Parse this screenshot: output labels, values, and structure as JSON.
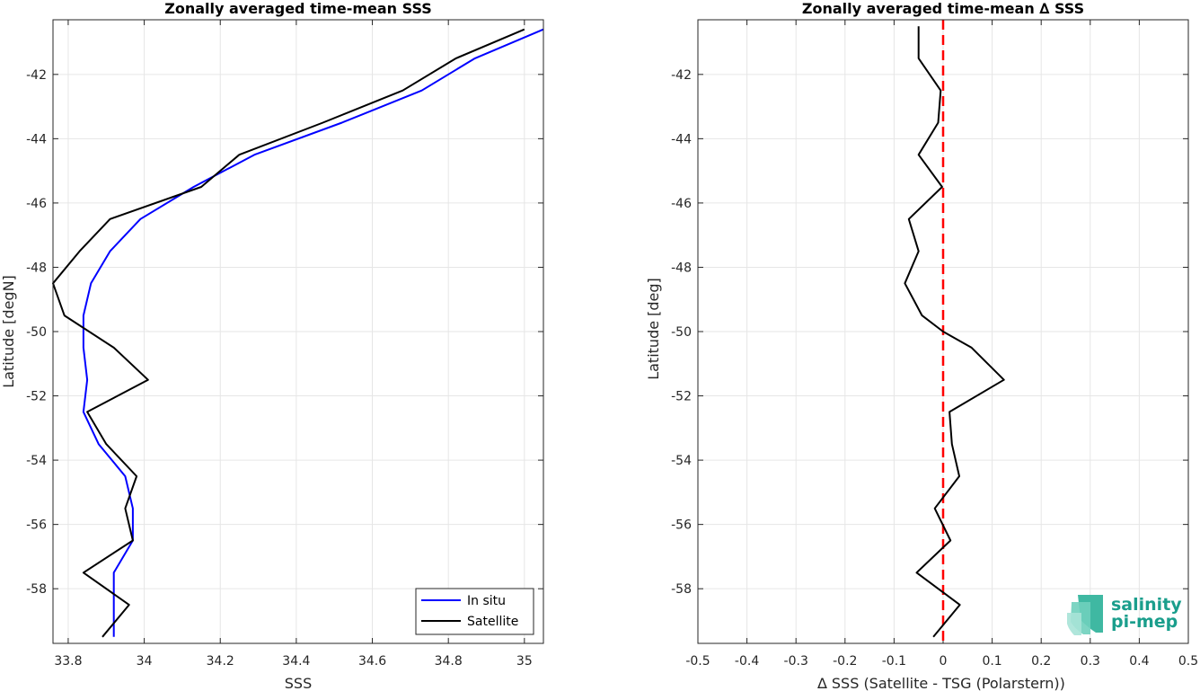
{
  "brand": {
    "line1": "salinity",
    "line2": "pi-mep",
    "color": "#1a9e8c"
  },
  "chart_data": [
    {
      "type": "line",
      "title": "Zonally averaged time-mean SSS",
      "xlabel": "SSS",
      "ylabel": "Latitude [degN]",
      "xlim": [
        33.76,
        35.05
      ],
      "ylim": [
        -59.7,
        -40.3
      ],
      "xticks": [
        33.8,
        34,
        34.2,
        34.4,
        34.6,
        34.8,
        35
      ],
      "xtick_labels": [
        "33.8",
        "34",
        "34.2",
        "34.4",
        "34.6",
        "34.8",
        "35"
      ],
      "yticks": [
        -58,
        -56,
        -54,
        -52,
        -50,
        -48,
        -46,
        -44,
        -42
      ],
      "ytick_labels": [
        "-58",
        "-56",
        "-54",
        "-52",
        "-50",
        "-48",
        "-46",
        "-44",
        "-42"
      ],
      "grid": true,
      "legend_position": "bottom-right",
      "series": [
        {
          "name": "In situ",
          "color": "#0000ff",
          "x": [
            35.05,
            34.87,
            34.73,
            34.52,
            34.29,
            34.13,
            33.99,
            33.91,
            33.86,
            33.84,
            33.84,
            33.85,
            33.84,
            33.88,
            33.95,
            33.97,
            33.97,
            33.92,
            33.92,
            33.92
          ],
          "y": [
            -40.6,
            -41.5,
            -42.5,
            -43.5,
            -44.5,
            -45.5,
            -46.5,
            -47.5,
            -48.5,
            -49.5,
            -50.5,
            -51.5,
            -52.5,
            -53.5,
            -54.5,
            -55.5,
            -56.5,
            -57.5,
            -58.5,
            -59.5
          ]
        },
        {
          "name": "Satellite",
          "color": "#000000",
          "x": [
            35.0,
            34.82,
            34.68,
            34.47,
            34.25,
            34.15,
            33.91,
            33.83,
            33.76,
            33.79,
            33.92,
            34.01,
            33.85,
            33.9,
            33.98,
            33.95,
            33.97,
            33.84,
            33.96,
            33.89
          ],
          "y": [
            -40.6,
            -41.5,
            -42.5,
            -43.5,
            -44.5,
            -45.5,
            -46.5,
            -47.5,
            -48.5,
            -49.5,
            -50.5,
            -51.5,
            -52.5,
            -53.5,
            -54.5,
            -55.5,
            -56.5,
            -57.5,
            -58.5,
            -59.5
          ]
        }
      ]
    },
    {
      "type": "line",
      "title": "Zonally averaged time-mean ∆ SSS",
      "xlabel": "∆ SSS (Satellite - TSG (Polarstern))",
      "ylabel": "Latitude [deg]",
      "xlim": [
        -0.5,
        0.5
      ],
      "ylim": [
        -59.7,
        -40.3
      ],
      "xticks": [
        -0.5,
        -0.4,
        -0.3,
        -0.2,
        -0.1,
        0,
        0.1,
        0.2,
        0.3,
        0.4,
        0.5
      ],
      "xtick_labels": [
        "-0.5",
        "-0.4",
        "-0.3",
        "-0.2",
        "-0.1",
        "0",
        "0.1",
        "0.2",
        "0.3",
        "0.4",
        "0.5"
      ],
      "yticks": [
        -58,
        -56,
        -54,
        -52,
        -50,
        -48,
        -46,
        -44,
        -42
      ],
      "ytick_labels": [
        "-58",
        "-56",
        "-54",
        "-52",
        "-50",
        "-48",
        "-46",
        "-44",
        "-42"
      ],
      "grid": true,
      "reference_line": {
        "x": 0,
        "color": "#ff0000",
        "style": "dashed"
      },
      "series": [
        {
          "color": "#000000",
          "x": [
            -0.05,
            -0.05,
            -0.005,
            -0.01,
            -0.05,
            -0.002,
            -0.07,
            -0.05,
            -0.078,
            -0.043,
            0.0,
            0.058,
            0.124,
            0.013,
            0.018,
            0.033,
            -0.017,
            0.015,
            -0.054,
            0.034,
            -0.02
          ],
          "y": [
            -40.5,
            -41.5,
            -42.5,
            -43.5,
            -44.5,
            -45.5,
            -46.5,
            -47.5,
            -48.5,
            -49.5,
            -50.0,
            -50.5,
            -51.5,
            -52.5,
            -53.5,
            -54.5,
            -55.5,
            -56.5,
            -57.5,
            -58.5,
            -59.5
          ]
        }
      ]
    }
  ]
}
